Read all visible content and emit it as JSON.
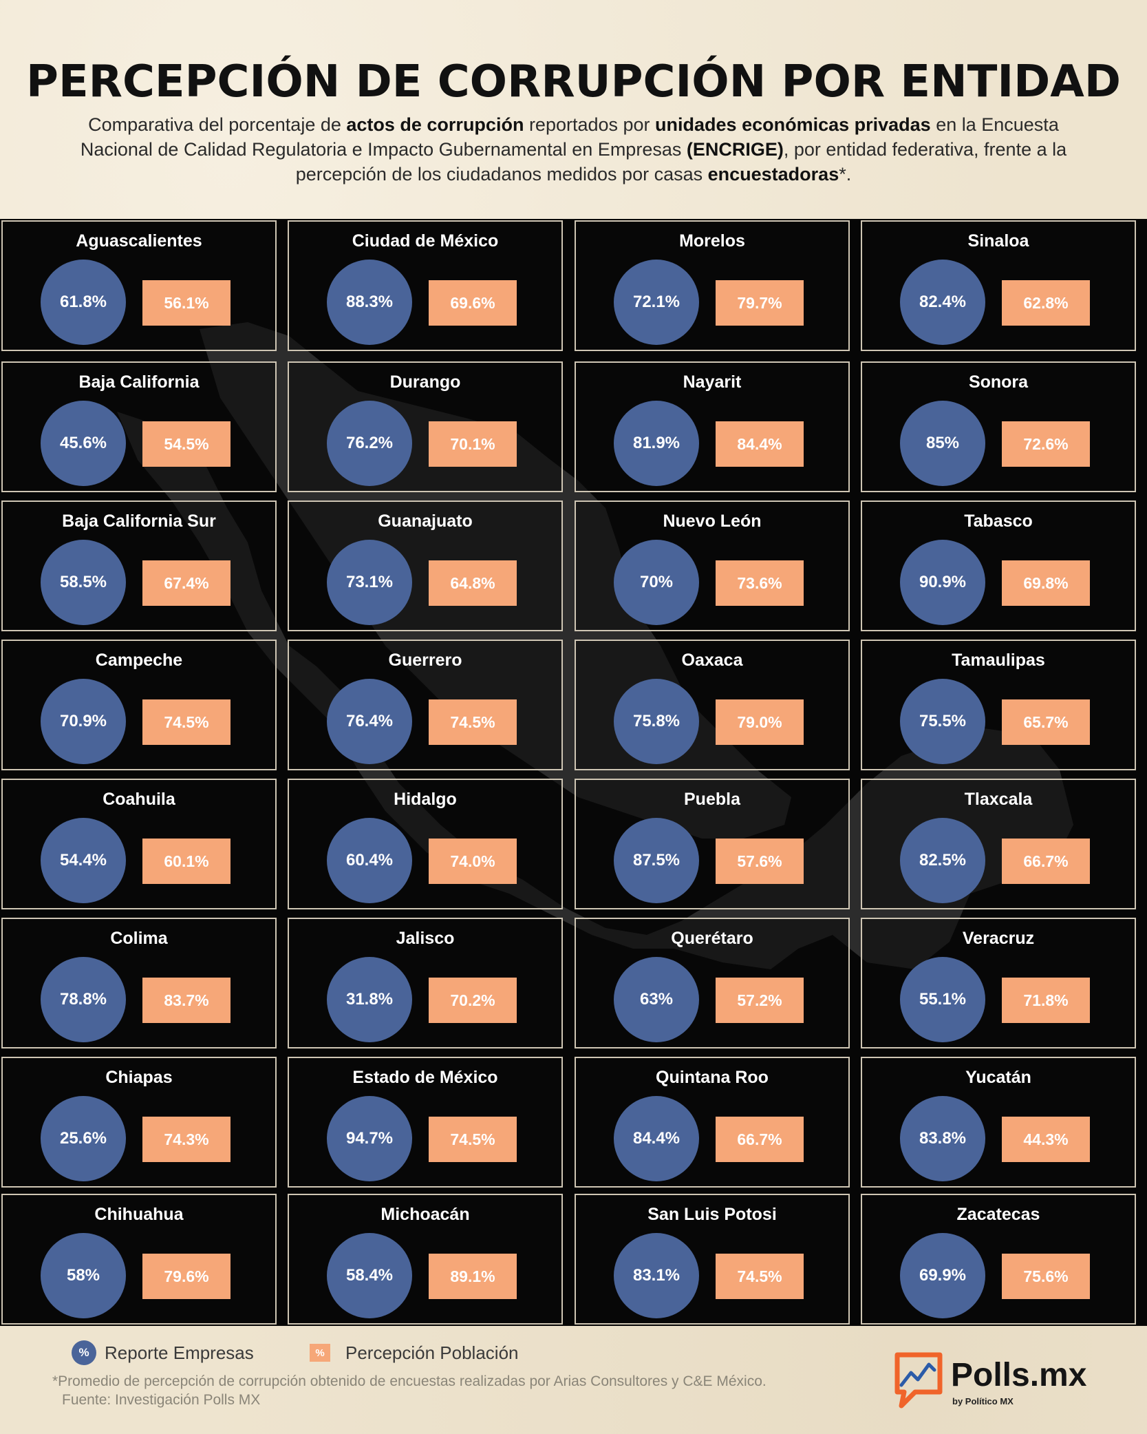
{
  "header": {
    "title": "PERCEPCIÓN DE CORRUPCIÓN POR ENTIDAD",
    "subtitle": [
      {
        "t": "Comparativa del porcentaje de ",
        "b": false
      },
      {
        "t": "actos de corrupción",
        "b": true
      },
      {
        "t": " reportados por ",
        "b": false
      },
      {
        "t": "unidades económicas privadas",
        "b": true
      },
      {
        "t": " en la Encuesta Nacional de Calidad Regulatoria e Impacto Gubernamental en Empresas ",
        "b": false
      },
      {
        "t": "(ENCRIGE)",
        "b": true
      },
      {
        "t": ", por entidad federativa, frente a la percepción de los ciudadanos medidos por casas ",
        "b": false
      },
      {
        "t": "encuestadoras",
        "b": true
      },
      {
        "t": "*.",
        "b": false
      }
    ]
  },
  "colors": {
    "empresas": "#4a6499",
    "poblacion": "#f6a778",
    "board": "#060606"
  },
  "chart_data": {
    "type": "table",
    "title": "PERCEPCIÓN DE CORRUPCIÓN POR ENTIDAD",
    "series": [
      {
        "name": "Reporte Empresas",
        "shape": "circle"
      },
      {
        "name": "Percepción Población",
        "shape": "square"
      }
    ],
    "columns": [
      [
        {
          "state": "Aguascalientes",
          "empresas": "61.8%",
          "poblacion": "56.1%"
        },
        {
          "state": "Baja California",
          "empresas": "45.6%",
          "poblacion": "54.5%"
        },
        {
          "state": "Baja California Sur",
          "empresas": "58.5%",
          "poblacion": "67.4%"
        },
        {
          "state": "Campeche",
          "empresas": "70.9%",
          "poblacion": "74.5%"
        },
        {
          "state": "Coahuila",
          "empresas": "54.4%",
          "poblacion": "60.1%"
        },
        {
          "state": "Colima",
          "empresas": "78.8%",
          "poblacion": "83.7%"
        },
        {
          "state": "Chiapas",
          "empresas": "25.6%",
          "poblacion": "74.3%"
        },
        {
          "state": "Chihuahua",
          "empresas": "58%",
          "poblacion": "79.6%"
        }
      ],
      [
        {
          "state": "Ciudad de México",
          "empresas": "88.3%",
          "poblacion": "69.6%"
        },
        {
          "state": "Durango",
          "empresas": "76.2%",
          "poblacion": "70.1%"
        },
        {
          "state": "Guanajuato",
          "empresas": "73.1%",
          "poblacion": "64.8%"
        },
        {
          "state": "Guerrero",
          "empresas": "76.4%",
          "poblacion": "74.5%"
        },
        {
          "state": "Hidalgo",
          "empresas": "60.4%",
          "poblacion": "74.0%"
        },
        {
          "state": "Jalisco",
          "empresas": "31.8%",
          "poblacion": "70.2%"
        },
        {
          "state": "Estado de México",
          "empresas": "94.7%",
          "poblacion": "74.5%"
        },
        {
          "state": "Michoacán",
          "empresas": "58.4%",
          "poblacion": "89.1%"
        }
      ],
      [
        {
          "state": "Morelos",
          "empresas": "72.1%",
          "poblacion": "79.7%"
        },
        {
          "state": "Nayarit",
          "empresas": "81.9%",
          "poblacion": "84.4%"
        },
        {
          "state": "Nuevo León",
          "empresas": "70%",
          "poblacion": "73.6%"
        },
        {
          "state": "Oaxaca",
          "empresas": "75.8%",
          "poblacion": "79.0%"
        },
        {
          "state": "Puebla",
          "empresas": "87.5%",
          "poblacion": "57.6%"
        },
        {
          "state": "Querétaro",
          "empresas": "63%",
          "poblacion": "57.2%"
        },
        {
          "state": "Quintana Roo",
          "empresas": "84.4%",
          "poblacion": "66.7%"
        },
        {
          "state": "San Luis Potosi",
          "empresas": "83.1%",
          "poblacion": "74.5%"
        }
      ],
      [
        {
          "state": "Sinaloa",
          "empresas": "82.4%",
          "poblacion": "62.8%"
        },
        {
          "state": "Sonora",
          "empresas": "85%",
          "poblacion": "72.6%"
        },
        {
          "state": "Tabasco",
          "empresas": "90.9%",
          "poblacion": "69.8%"
        },
        {
          "state": "Tamaulipas",
          "empresas": "75.5%",
          "poblacion": "65.7%"
        },
        {
          "state": "Tlaxcala",
          "empresas": "82.5%",
          "poblacion": "66.7%"
        },
        {
          "state": "Veracruz",
          "empresas": "55.1%",
          "poblacion": "71.8%"
        },
        {
          "state": "Yucatán",
          "empresas": "83.8%",
          "poblacion": "44.3%"
        },
        {
          "state": "Zacatecas",
          "empresas": "69.9%",
          "poblacion": "75.6%"
        }
      ]
    ]
  },
  "legend": {
    "empresas_label": "Reporte Empresas",
    "poblacion_label": "Percepción Población",
    "symbol": "%"
  },
  "footnote": {
    "line1": "*Promedio de percepción de corrupción obtenido de encuestas realizadas por Arias Consultores y C&E México.",
    "line2": "Fuente: Investigación Polls MX"
  },
  "brand": {
    "name": "Polls.mx",
    "sub": "by Político MX",
    "icon": "chart-bubble-icon"
  }
}
